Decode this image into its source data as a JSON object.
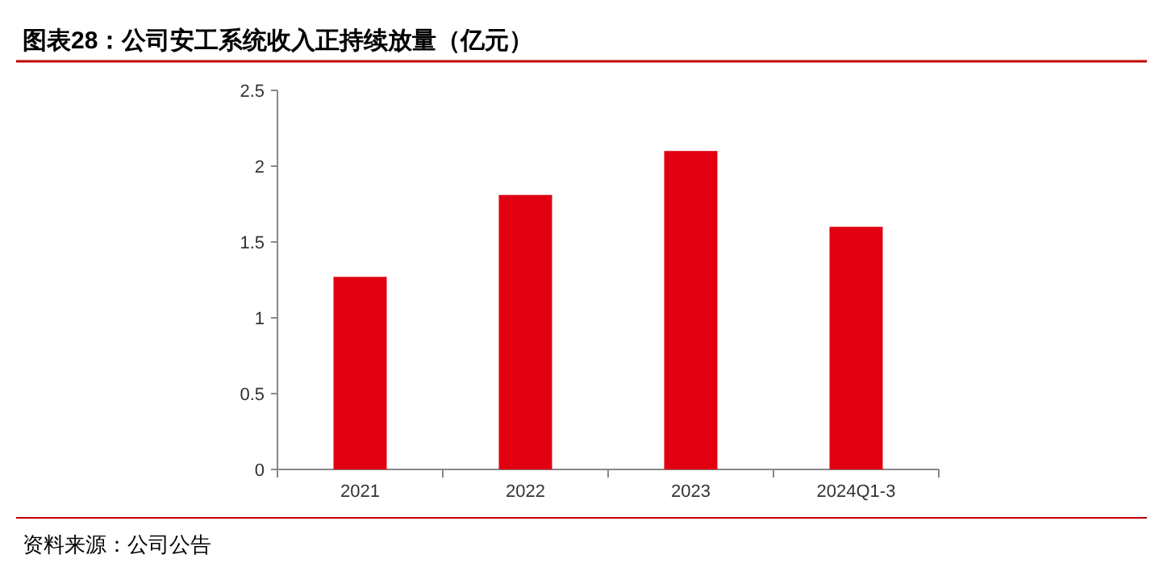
{
  "chart_data": {
    "type": "bar",
    "title": "图表28：公司安工系统收入正持续放量（亿元）",
    "categories": [
      "2021",
      "2022",
      "2023",
      "2024Q1-3"
    ],
    "series": [
      {
        "color": "#e00012",
        "values": [
          1.27,
          1.81,
          2.1,
          1.6
        ]
      }
    ],
    "ylim": [
      0,
      2.5
    ],
    "yticks": [
      0,
      {
        "value": 0.5,
        "label": "0.5"
      },
      1,
      {
        "value": 1.5,
        "label": "1.5"
      },
      2,
      {
        "value": 2.5,
        "label": "2.5"
      }
    ],
    "annotations": [
      "资料来源：公司公告"
    ]
  }
}
